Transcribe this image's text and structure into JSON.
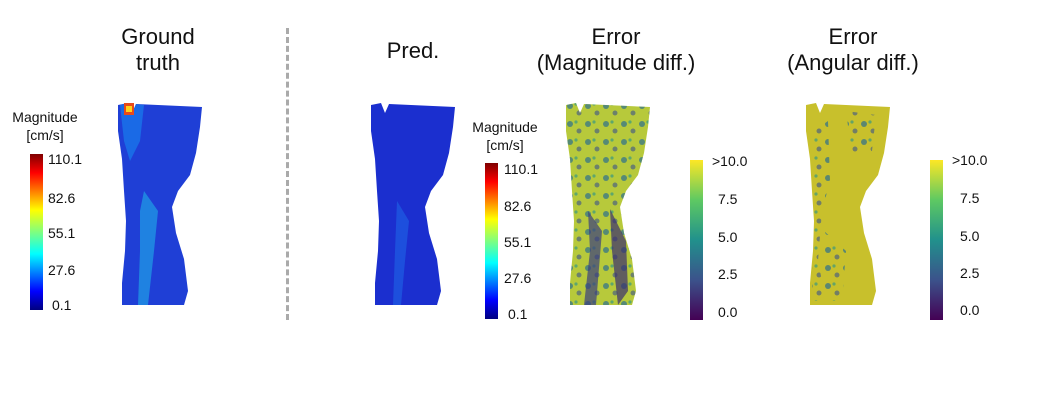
{
  "panels": [
    {
      "id": "ground-truth",
      "title": "Ground\ntruth"
    },
    {
      "id": "pred",
      "title": "Pred."
    },
    {
      "id": "error-magnitude",
      "title": "Error\n(Magnitude diff.)"
    },
    {
      "id": "error-angular",
      "title": "Error\n(Angular diff.)"
    }
  ],
  "colorbars": {
    "magnitude_1": {
      "title": "Magnitude\n[cm/s]",
      "colormap": "jet",
      "ticks": [
        "110.1",
        "82.6",
        "55.1",
        "27.6",
        "0.1"
      ]
    },
    "magnitude_2": {
      "title": "Magnitude\n[cm/s]",
      "colormap": "jet",
      "ticks": [
        "110.1",
        "82.6",
        "55.1",
        "27.6",
        "0.1"
      ]
    },
    "error_magnitude": {
      "colormap": "viridis",
      "ticks": [
        ">10.0",
        "7.5",
        "5.0",
        "2.5",
        "0.0"
      ]
    },
    "error_angular": {
      "colormap": "viridis",
      "ticks": [
        ">10.0",
        "7.5",
        "5.0",
        "2.5",
        "0.0"
      ]
    }
  },
  "colors": {
    "jet_low": "#00007f",
    "jet_high": "#7f0000",
    "viridis_low": "#440154",
    "viridis_high": "#fde725",
    "divider": "#aaaaaa"
  }
}
